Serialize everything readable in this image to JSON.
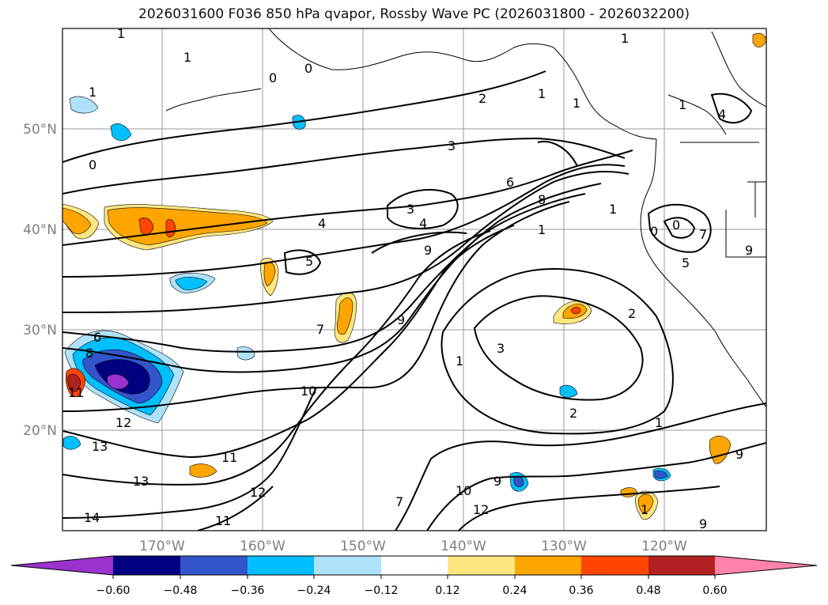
{
  "title": "2026031600 F036 850 hPa qvapor, Rossby Wave PC (2026031800 - 2026032200)",
  "map": {
    "lat_labels": [
      "50°N",
      "40°N",
      "30°N",
      "20°N"
    ],
    "lon_labels": [
      "170°W",
      "160°W",
      "150°W",
      "140°W",
      "130°W",
      "120°W"
    ]
  },
  "contour_labels": [
    "1",
    "1",
    "1",
    "1",
    "2",
    "0",
    "0",
    "0",
    "1",
    "3",
    "4",
    "4",
    "3",
    "1",
    "5",
    "7",
    "9",
    "8",
    "6",
    "10",
    "11",
    "12",
    "13",
    "13",
    "14",
    "12",
    "11",
    "10",
    "9",
    "12",
    "7",
    "9",
    "8",
    "1",
    "1",
    "1",
    "2",
    "3",
    "2",
    "1",
    "7",
    "5",
    "4",
    "9",
    "9",
    "0",
    "0",
    "6",
    "11",
    "9",
    "1",
    "1"
  ],
  "colorbar": {
    "ticks": [
      "−0.60",
      "−0.48",
      "−0.36",
      "−0.24",
      "−0.12",
      "0.12",
      "0.24",
      "0.36",
      "0.48",
      "0.60"
    ],
    "colors": [
      "#9a32cd",
      "#000080",
      "#3355cc",
      "#00bfff",
      "#aee2fa",
      "#ffffff",
      "#ffe680",
      "#ffa500",
      "#ff4500",
      "#b22222",
      "#ff82ab"
    ]
  }
}
